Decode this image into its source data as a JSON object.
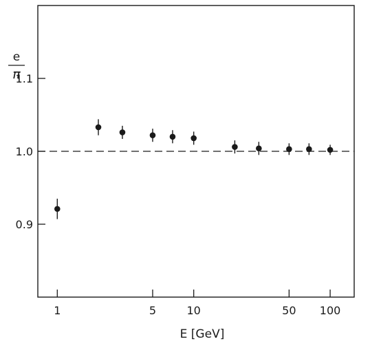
{
  "chart_data": {
    "type": "scatter",
    "title": "",
    "xlabel": "E [GeV]",
    "ylabel": {
      "numerator": "e",
      "denominator": "π"
    },
    "x_scale": "log",
    "xlim": [
      0.72,
      150
    ],
    "ylim": [
      0.8,
      1.2
    ],
    "x_ticks": [
      1,
      5,
      10,
      50,
      100
    ],
    "x_tick_labels": [
      "1",
      "5",
      "10",
      "50",
      "100"
    ],
    "y_ticks": [
      0.9,
      1.0,
      1.1
    ],
    "y_tick_labels": [
      "0.9",
      "1.0",
      "1.1"
    ],
    "reference_line": {
      "y": 1.0,
      "style": "dashed"
    },
    "grid": false,
    "series": [
      {
        "x": [
          1,
          2,
          3,
          5,
          7,
          10,
          20,
          30,
          50,
          70,
          100
        ],
        "y": [
          0.921,
          1.033,
          1.026,
          1.022,
          1.02,
          1.018,
          1.006,
          1.004,
          1.003,
          1.003,
          1.002
        ],
        "error": [
          0.014,
          0.011,
          0.009,
          0.009,
          0.009,
          0.009,
          0.009,
          0.009,
          0.008,
          0.008,
          0.007
        ]
      }
    ],
    "colors": {
      "ink": "#1a1a1a",
      "background": "#ffffff"
    }
  }
}
